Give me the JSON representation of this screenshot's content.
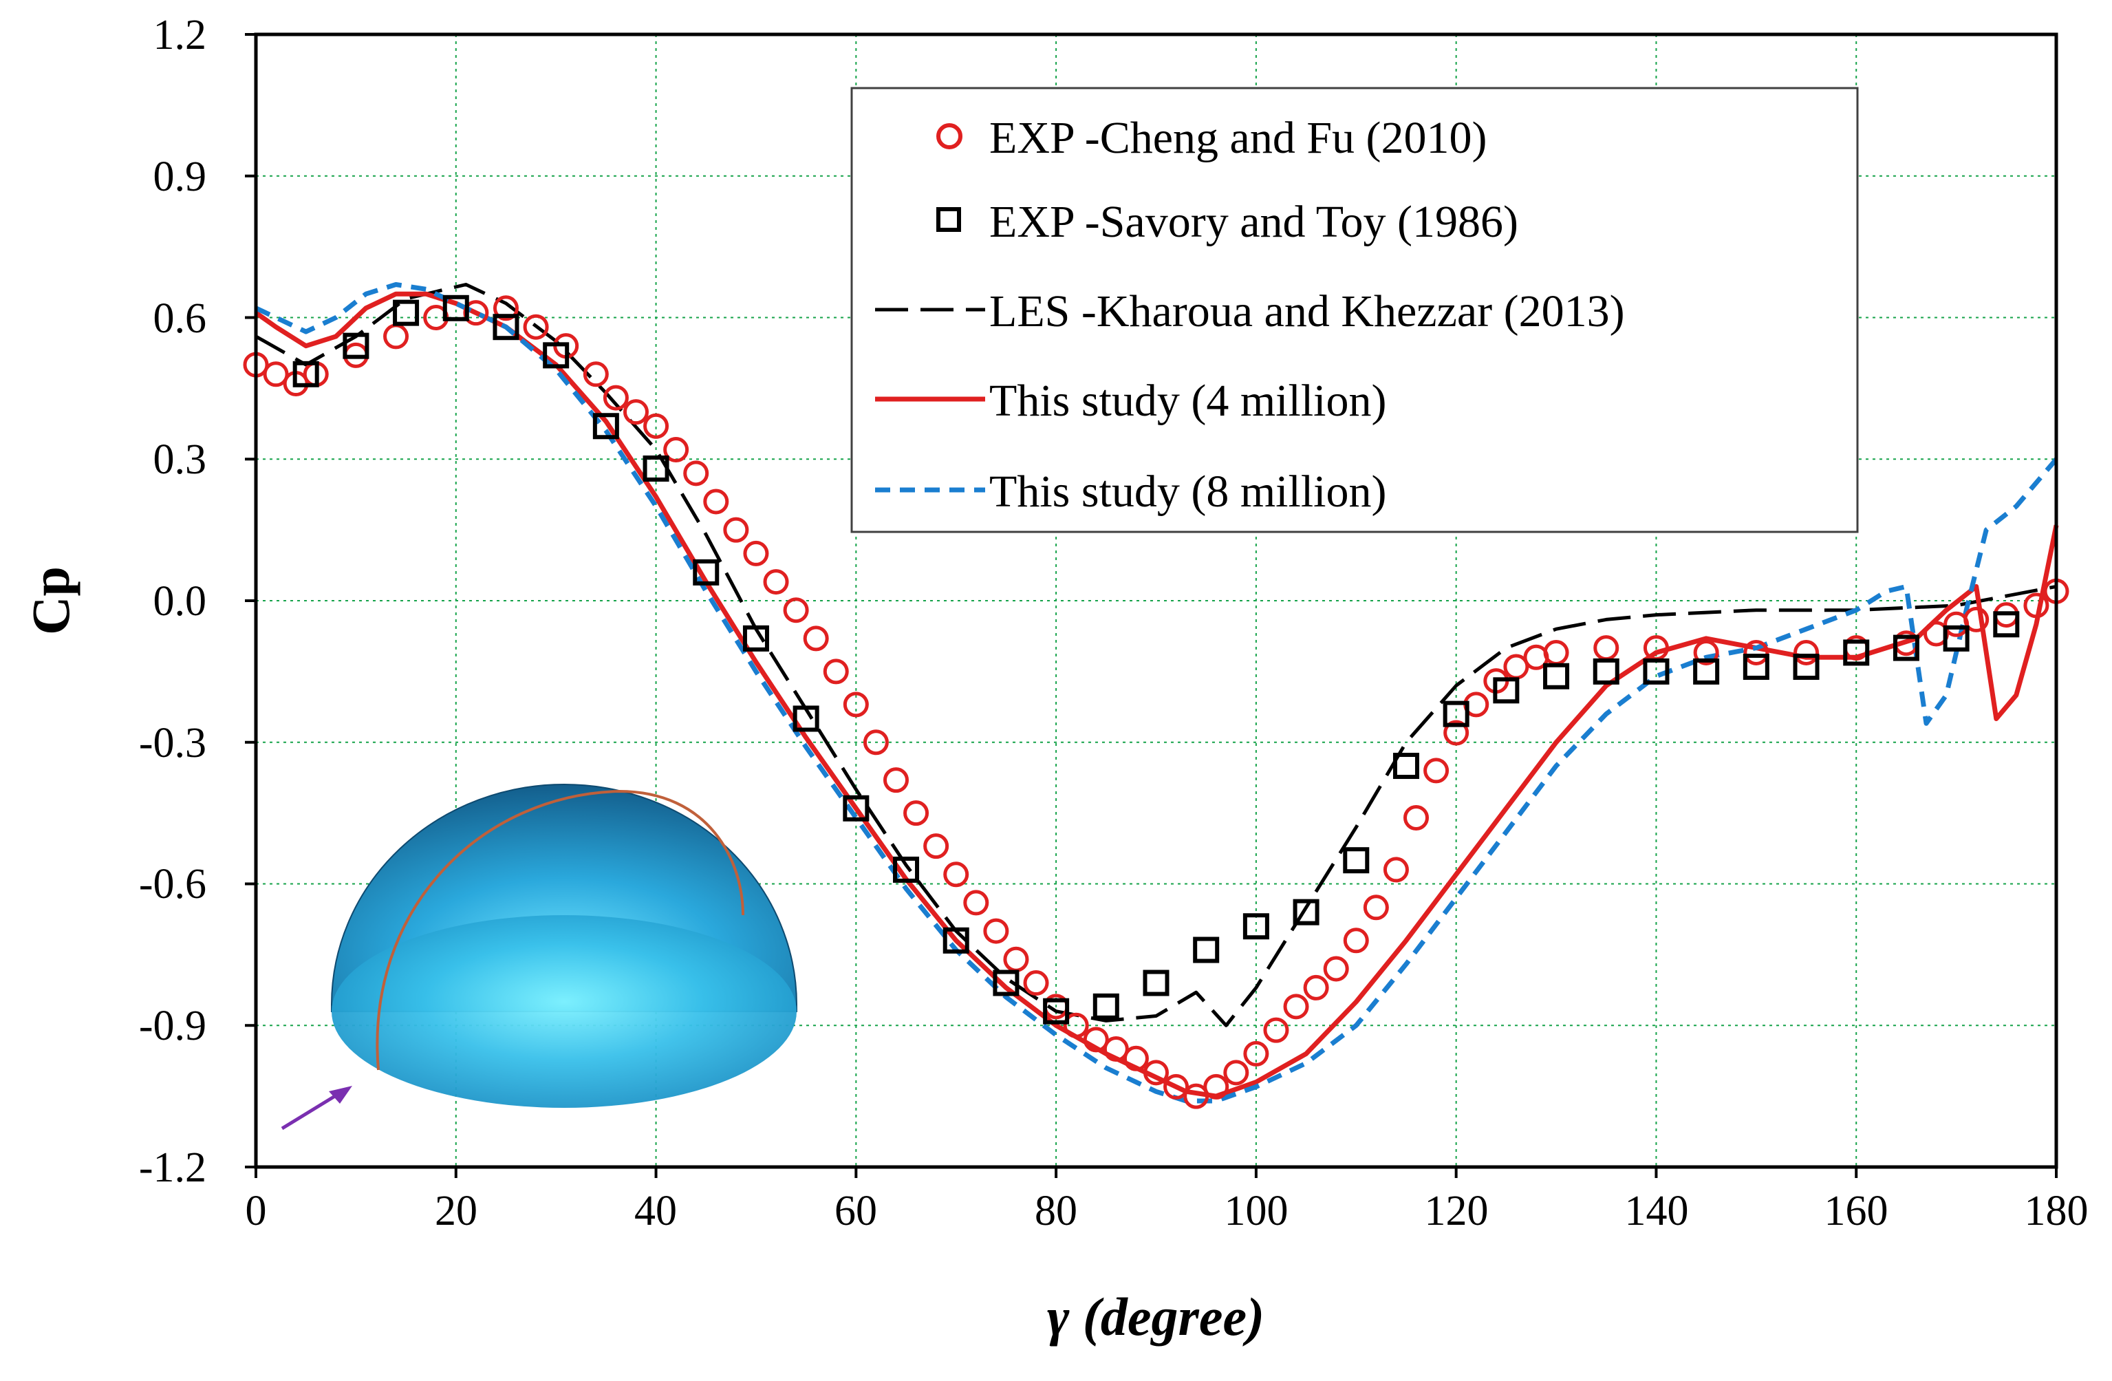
{
  "chart_data": {
    "type": "line",
    "title": "",
    "xlabel": "γ (degree)",
    "ylabel": "Cp",
    "xlim": [
      0,
      180
    ],
    "ylim": [
      -1.2,
      1.2
    ],
    "x_ticks": [
      "0",
      "20",
      "40",
      "60",
      "80",
      "100",
      "120",
      "140",
      "160",
      "180"
    ],
    "y_ticks": [
      "1.2",
      "0.9",
      "0.6",
      "0.3",
      "0.0",
      "-0.3",
      "-0.6",
      "-0.9",
      "-1.2"
    ],
    "grid": true,
    "legend_position": "top-right",
    "inset_image": "hemisphere-with-wind-arrow",
    "series": [
      {
        "name": "EXP -Cheng and Fu (2010)",
        "style": "circle-markers",
        "color": "#e02020",
        "x": [
          0,
          2,
          4,
          6,
          10,
          14,
          18,
          22,
          25,
          28,
          31,
          34,
          36,
          38,
          40,
          42,
          44,
          46,
          48,
          50,
          52,
          54,
          56,
          58,
          60,
          62,
          64,
          66,
          68,
          70,
          72,
          74,
          76,
          78,
          80,
          82,
          84,
          86,
          88,
          90,
          92,
          94,
          96,
          98,
          100,
          102,
          104,
          106,
          108,
          110,
          112,
          114,
          116,
          118,
          120,
          122,
          124,
          126,
          128,
          130,
          135,
          140,
          145,
          150,
          155,
          160,
          165,
          168,
          170,
          172,
          175,
          178,
          180
        ],
        "y": [
          0.5,
          0.48,
          0.46,
          0.48,
          0.52,
          0.56,
          0.6,
          0.61,
          0.62,
          0.58,
          0.54,
          0.48,
          0.43,
          0.4,
          0.37,
          0.32,
          0.27,
          0.21,
          0.15,
          0.1,
          0.04,
          -0.02,
          -0.08,
          -0.15,
          -0.22,
          -0.3,
          -0.38,
          -0.45,
          -0.52,
          -0.58,
          -0.64,
          -0.7,
          -0.76,
          -0.81,
          -0.86,
          -0.9,
          -0.93,
          -0.95,
          -0.97,
          -1.0,
          -1.03,
          -1.05,
          -1.03,
          -1.0,
          -0.96,
          -0.91,
          -0.86,
          -0.82,
          -0.78,
          -0.72,
          -0.65,
          -0.57,
          -0.46,
          -0.36,
          -0.28,
          -0.22,
          -0.17,
          -0.14,
          -0.12,
          -0.11,
          -0.1,
          -0.1,
          -0.11,
          -0.11,
          -0.11,
          -0.1,
          -0.09,
          -0.07,
          -0.05,
          -0.04,
          -0.03,
          -0.01,
          0.02
        ]
      },
      {
        "name": "EXP -Savory and Toy (1986)",
        "style": "square-markers",
        "color": "#000000",
        "x": [
          5,
          10,
          15,
          20,
          25,
          30,
          35,
          40,
          45,
          50,
          55,
          60,
          65,
          70,
          75,
          80,
          85,
          90,
          95,
          100,
          105,
          110,
          115,
          120,
          125,
          130,
          135,
          140,
          145,
          150,
          155,
          160,
          165,
          170,
          175
        ],
        "y": [
          0.48,
          0.54,
          0.61,
          0.62,
          0.58,
          0.52,
          0.37,
          0.28,
          0.06,
          -0.08,
          -0.25,
          -0.44,
          -0.57,
          -0.72,
          -0.81,
          -0.87,
          -0.86,
          -0.81,
          -0.74,
          -0.69,
          -0.66,
          -0.55,
          -0.35,
          -0.24,
          -0.19,
          -0.16,
          -0.15,
          -0.15,
          -0.15,
          -0.14,
          -0.14,
          -0.11,
          -0.1,
          -0.08,
          -0.05
        ]
      },
      {
        "name": "LES -Kharoua and Khezzar (2013)",
        "style": "long-dash",
        "color": "#000000",
        "x": [
          0,
          5,
          10,
          15,
          21,
          25,
          30,
          35,
          40,
          45,
          50,
          55,
          60,
          65,
          70,
          75,
          80,
          85,
          90,
          94,
          97,
          100,
          105,
          110,
          115,
          120,
          125,
          130,
          135,
          140,
          150,
          160,
          170,
          180
        ],
        "y": [
          0.56,
          0.5,
          0.56,
          0.64,
          0.67,
          0.63,
          0.55,
          0.44,
          0.32,
          0.14,
          -0.06,
          -0.23,
          -0.4,
          -0.56,
          -0.7,
          -0.8,
          -0.87,
          -0.89,
          -0.88,
          -0.83,
          -0.9,
          -0.82,
          -0.65,
          -0.48,
          -0.3,
          -0.18,
          -0.1,
          -0.06,
          -0.04,
          -0.03,
          -0.02,
          -0.02,
          -0.01,
          0.03
        ]
      },
      {
        "name": "This study (4 million)",
        "style": "solid",
        "color": "#e02020",
        "x": [
          0,
          2,
          5,
          8,
          11,
          14,
          17,
          20,
          25,
          30,
          35,
          40,
          45,
          50,
          55,
          60,
          65,
          70,
          75,
          80,
          85,
          90,
          93,
          96,
          100,
          105,
          110,
          115,
          120,
          125,
          130,
          135,
          140,
          145,
          150,
          155,
          160,
          163,
          166,
          169,
          172,
          174,
          176,
          178,
          180
        ],
        "y": [
          0.61,
          0.58,
          0.54,
          0.56,
          0.62,
          0.65,
          0.65,
          0.63,
          0.58,
          0.5,
          0.38,
          0.22,
          0.04,
          -0.13,
          -0.29,
          -0.44,
          -0.59,
          -0.72,
          -0.82,
          -0.9,
          -0.96,
          -1.01,
          -1.04,
          -1.05,
          -1.02,
          -0.96,
          -0.85,
          -0.72,
          -0.58,
          -0.44,
          -0.3,
          -0.18,
          -0.11,
          -0.08,
          -0.1,
          -0.12,
          -0.12,
          -0.1,
          -0.08,
          -0.02,
          0.03,
          -0.25,
          -0.2,
          -0.05,
          0.16
        ]
      },
      {
        "name": "This study (8 million)",
        "style": "short-dash",
        "color": "#1a7ed0",
        "x": [
          0,
          2,
          5,
          8,
          11,
          14,
          17,
          20,
          25,
          30,
          35,
          40,
          45,
          50,
          55,
          60,
          65,
          70,
          75,
          80,
          85,
          90,
          93,
          96,
          100,
          105,
          110,
          115,
          120,
          125,
          130,
          135,
          140,
          145,
          150,
          155,
          160,
          163,
          165,
          167,
          169,
          171,
          173,
          176,
          180
        ],
        "y": [
          0.62,
          0.6,
          0.57,
          0.6,
          0.65,
          0.67,
          0.66,
          0.63,
          0.58,
          0.49,
          0.36,
          0.2,
          0.02,
          -0.15,
          -0.31,
          -0.46,
          -0.61,
          -0.74,
          -0.84,
          -0.92,
          -0.99,
          -1.04,
          -1.06,
          -1.06,
          -1.03,
          -0.98,
          -0.9,
          -0.77,
          -0.63,
          -0.49,
          -0.35,
          -0.24,
          -0.16,
          -0.12,
          -0.1,
          -0.06,
          -0.02,
          0.02,
          0.03,
          -0.26,
          -0.2,
          -0.02,
          0.15,
          0.2,
          0.3
        ]
      }
    ]
  }
}
